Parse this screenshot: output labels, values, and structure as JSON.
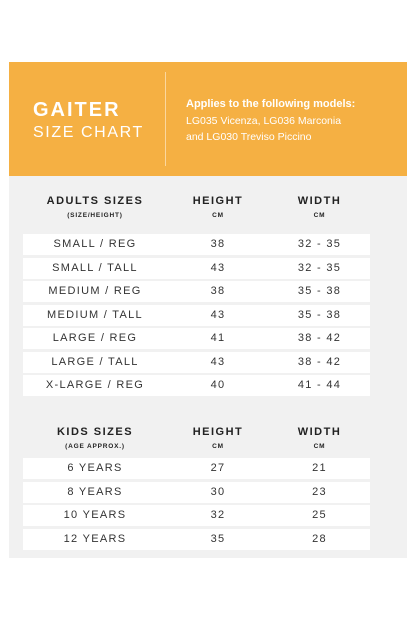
{
  "header": {
    "title": "GAITER",
    "subtitle": "SIZE CHART",
    "applies": "Applies to the following models:",
    "models_line1": "LG035 Vicenza, LG036 Marconia",
    "models_line2": "and LG030 Treviso Piccino",
    "accent_color": "#f5b043"
  },
  "adults": {
    "col1": "ADULTS SIZES",
    "col1_sub": "(SIZE/HEIGHT)",
    "col2": "HEIGHT",
    "col2_sub": "CM",
    "col3": "WIDTH",
    "col3_sub": "CM",
    "rows": [
      {
        "size": "SMALL / REG",
        "height": "38",
        "width": "32 - 35"
      },
      {
        "size": "SMALL / TALL",
        "height": "43",
        "width": "32 - 35"
      },
      {
        "size": "MEDIUM / REG",
        "height": "38",
        "width": "35 - 38"
      },
      {
        "size": "MEDIUM / TALL",
        "height": "43",
        "width": "35 - 38"
      },
      {
        "size": "LARGE / REG",
        "height": "41",
        "width": "38 - 42"
      },
      {
        "size": "LARGE / TALL",
        "height": "43",
        "width": "38 - 42"
      },
      {
        "size": "X-LARGE / REG",
        "height": "40",
        "width": "41 - 44"
      }
    ]
  },
  "kids": {
    "col1": "KIDS SIZES",
    "col1_sub": "(AGE APPROX.)",
    "col2": "HEIGHT",
    "col2_sub": "CM",
    "col3": "WIDTH",
    "col3_sub": "CM",
    "rows": [
      {
        "size": "6 YEARS",
        "height": "27",
        "width": "21"
      },
      {
        "size": "8 YEARS",
        "height": "30",
        "width": "23"
      },
      {
        "size": "10 YEARS",
        "height": "32",
        "width": "25"
      },
      {
        "size": "12 YEARS",
        "height": "35",
        "width": "28"
      }
    ]
  }
}
